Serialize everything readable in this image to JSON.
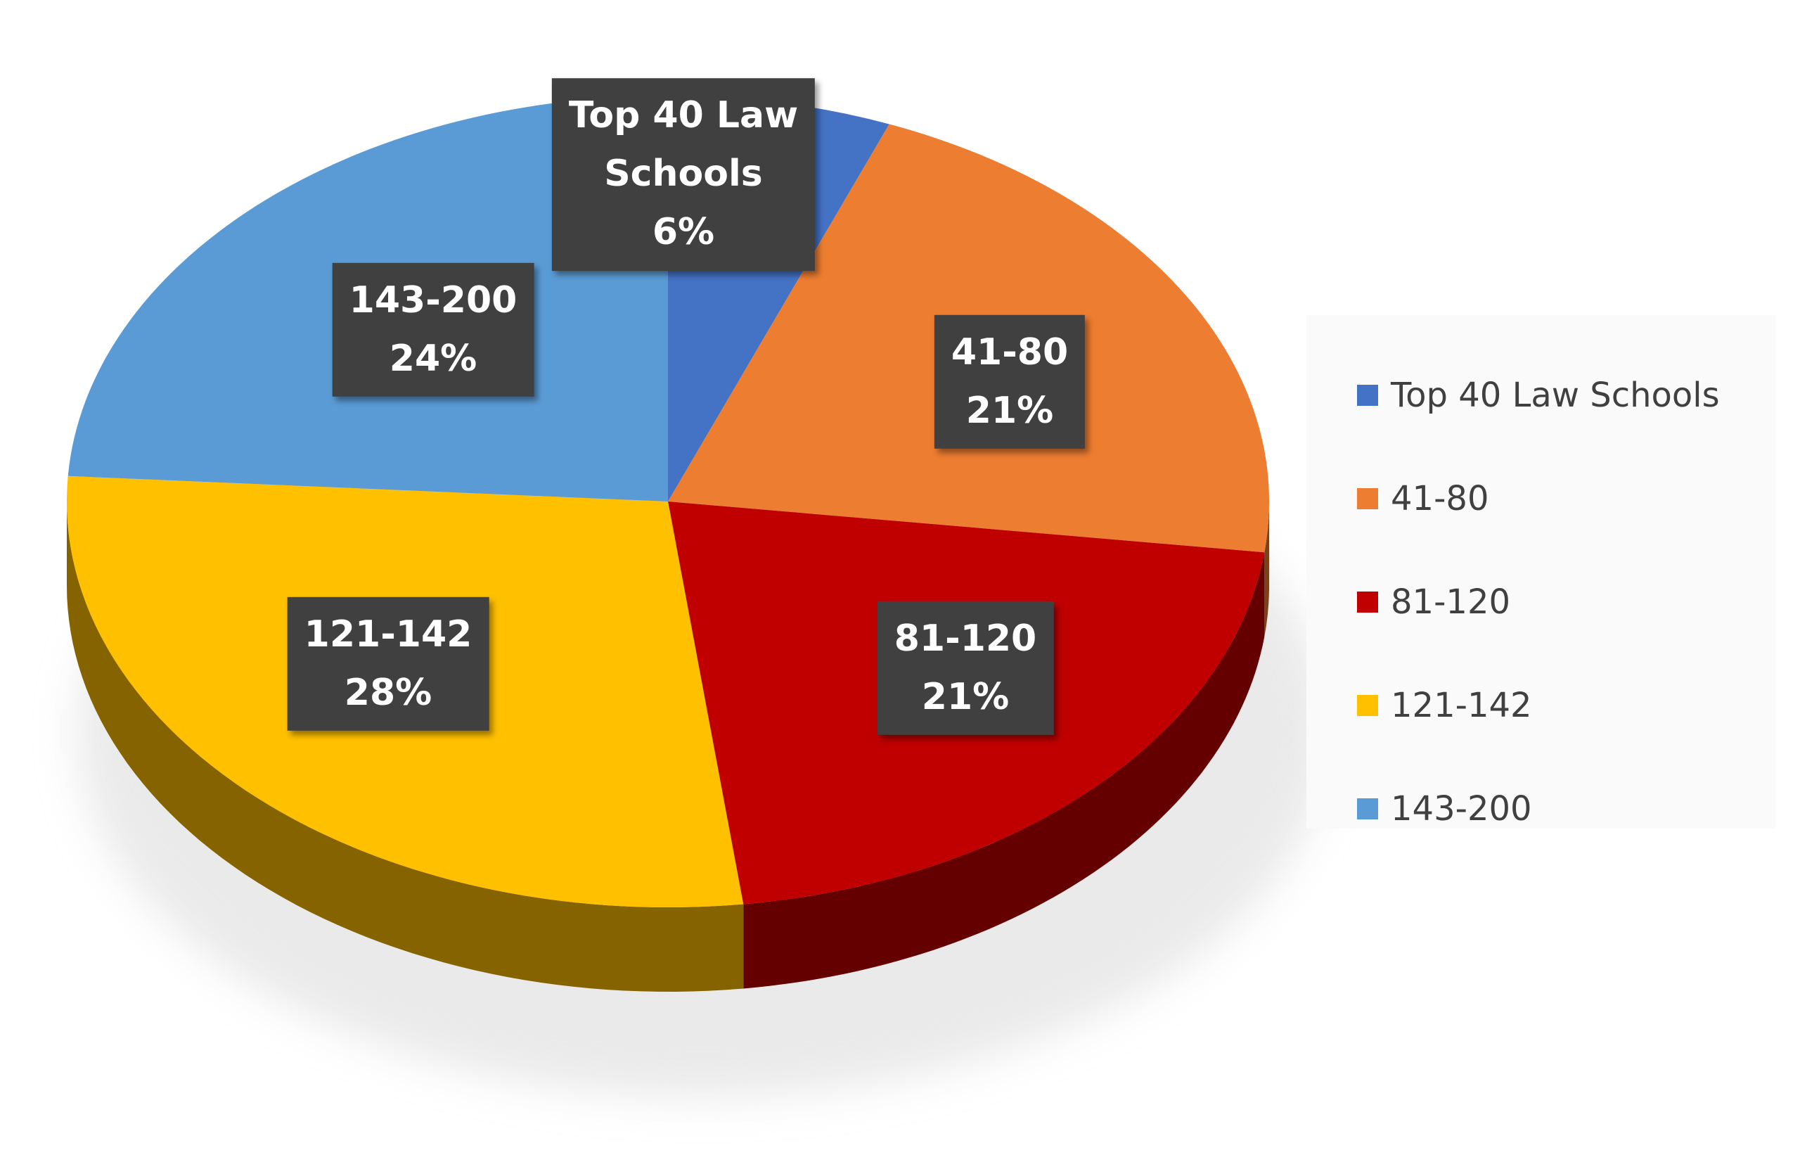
{
  "chart_data": {
    "type": "pie",
    "style": "3d",
    "start_angle_deg": 0,
    "direction": "clockwise",
    "legend_position": "right",
    "slices": [
      {
        "label": "Top 40 Law Schools",
        "value": 6,
        "value_label": "6%",
        "label_lines": [
          "Top 40 Law",
          "Schools",
          "6%"
        ],
        "color": "#4472C4"
      },
      {
        "label": "41-80",
        "value": 21,
        "value_label": "21%",
        "label_lines": [
          "41-80",
          "21%"
        ],
        "color": "#ED7D31"
      },
      {
        "label": "81-120",
        "value": 21,
        "value_label": "21%",
        "label_lines": [
          "81-120",
          "21%"
        ],
        "color": "#C00000"
      },
      {
        "label": "121-142",
        "value": 28,
        "value_label": "28%",
        "label_lines": [
          "121-142",
          "28%"
        ],
        "color": "#FFC000"
      },
      {
        "label": "143-200",
        "value": 24,
        "value_label": "24%",
        "label_lines": [
          "143-200",
          "24%"
        ],
        "color": "#5B9BD5"
      }
    ]
  }
}
